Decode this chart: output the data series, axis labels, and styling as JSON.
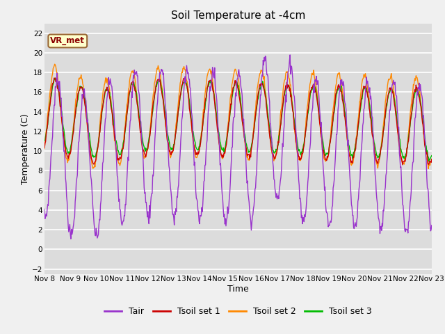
{
  "title": "Soil Temperature at -4cm",
  "xlabel": "Time",
  "ylabel": "Temperature (C)",
  "ylim": [
    -2.5,
    23
  ],
  "yticks": [
    -2,
    0,
    2,
    4,
    6,
    8,
    10,
    12,
    14,
    16,
    18,
    20,
    22
  ],
  "xtick_labels": [
    "Nov 8",
    "Nov 9",
    "Nov 10",
    "Nov 11",
    "Nov 12",
    "Nov 13",
    "Nov 14",
    "Nov 15",
    "Nov 16",
    "Nov 17",
    "Nov 18",
    "Nov 19",
    "Nov 20",
    "Nov 21",
    "Nov 22",
    "Nov 23"
  ],
  "legend_labels": [
    "Tair",
    "Tsoil set 1",
    "Tsoil set 2",
    "Tsoil set 3"
  ],
  "legend_colors": [
    "#9933cc",
    "#cc0000",
    "#ff8800",
    "#00bb00"
  ],
  "line_colors": [
    "#9933cc",
    "#cc0000",
    "#ff8800",
    "#00bb00"
  ],
  "annotation_text": "VR_met",
  "bg_color": "#dcdcdc",
  "grid_color": "#ffffff",
  "title_fontsize": 11,
  "tick_fontsize": 7.5,
  "axis_label_fontsize": 9,
  "legend_fontsize": 9,
  "n_days": 15,
  "fig_width": 6.4,
  "fig_height": 4.8,
  "dpi": 100
}
